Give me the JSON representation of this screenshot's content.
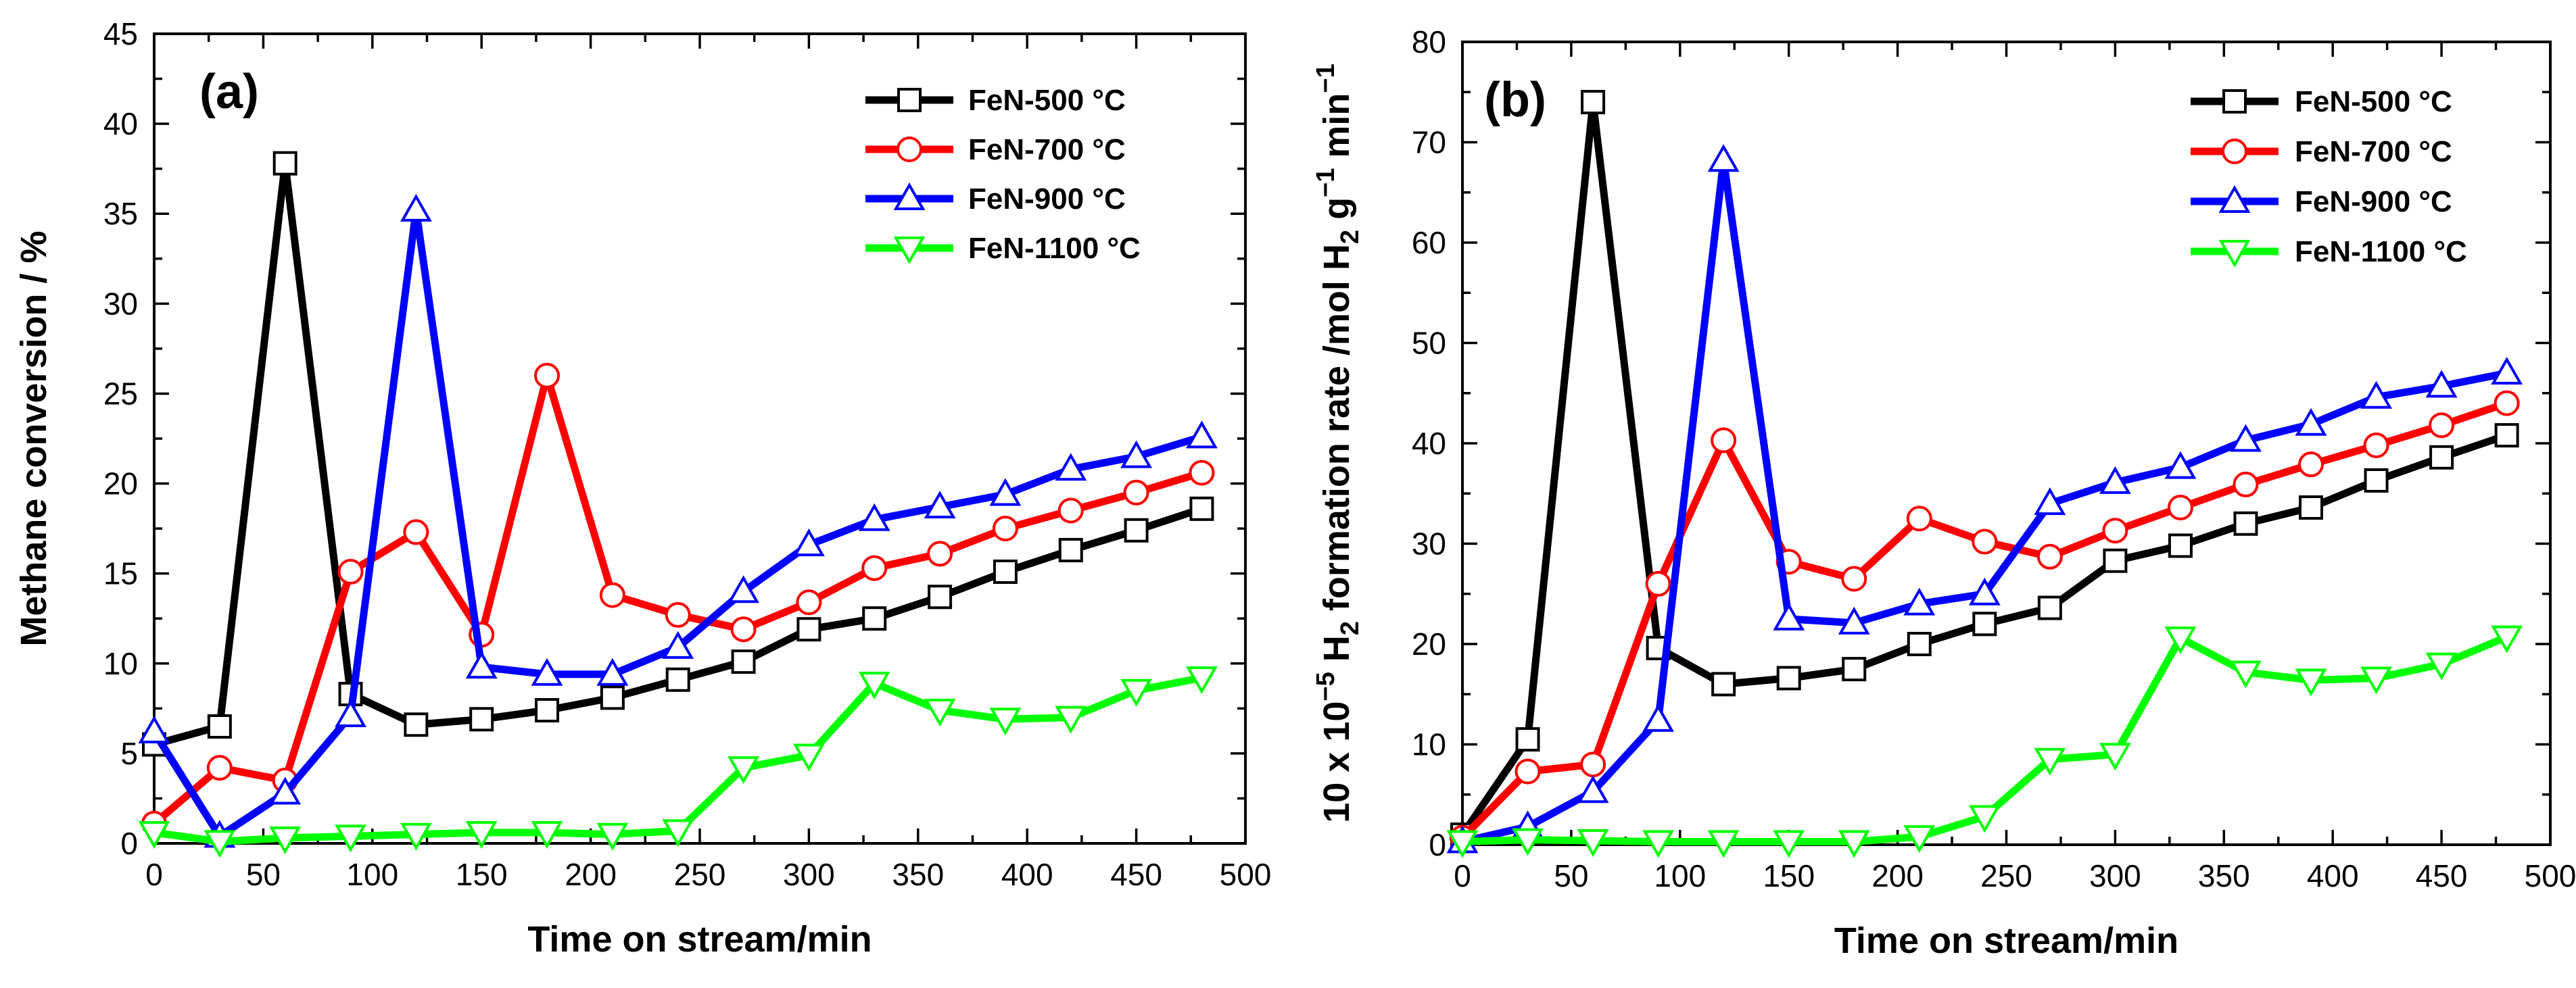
{
  "chart_data": [
    {
      "type": "line",
      "panel_label": "(a)",
      "xlabel": "Time on stream/min",
      "ylabel": "Methane conversion / %",
      "xlim": [
        0,
        500
      ],
      "ylim": [
        0,
        45
      ],
      "xticks": [
        0,
        50,
        100,
        150,
        200,
        250,
        300,
        350,
        400,
        450,
        500
      ],
      "yticks": [
        0,
        5,
        10,
        15,
        20,
        25,
        30,
        35,
        40,
        45
      ],
      "legend_position": "top-right",
      "series": [
        {
          "name": "FeN-500 °C",
          "color": "#000000",
          "marker": "square",
          "x": [
            0,
            30,
            60,
            90,
            120,
            150,
            180,
            210,
            240,
            270,
            300,
            330,
            360,
            390,
            420,
            450,
            480
          ],
          "y": [
            5.5,
            6.5,
            37.8,
            8.3,
            6.6,
            6.9,
            7.4,
            8.1,
            9.1,
            10.1,
            11.9,
            12.5,
            13.7,
            15.1,
            16.3,
            17.4,
            18.6
          ]
        },
        {
          "name": "FeN-700 °C",
          "color": "#ff0000",
          "marker": "circle",
          "x": [
            0,
            30,
            60,
            90,
            120,
            150,
            180,
            210,
            240,
            270,
            300,
            330,
            360,
            390,
            420,
            450,
            480
          ],
          "y": [
            1.1,
            4.2,
            3.5,
            15.1,
            17.3,
            11.6,
            26.0,
            13.8,
            12.7,
            11.9,
            13.4,
            15.3,
            16.1,
            17.5,
            18.5,
            19.5,
            20.6
          ]
        },
        {
          "name": "FeN-900 °C",
          "color": "#0000ff",
          "marker": "triangle-up",
          "x": [
            0,
            30,
            60,
            90,
            120,
            150,
            180,
            210,
            240,
            270,
            300,
            330,
            360,
            390,
            420,
            450,
            480
          ],
          "y": [
            6.2,
            0.4,
            2.8,
            7.1,
            35.2,
            9.8,
            9.4,
            9.4,
            10.9,
            14.0,
            16.6,
            18.0,
            18.7,
            19.4,
            20.8,
            21.5,
            22.6
          ]
        },
        {
          "name": "FeN-1100 °C",
          "color": "#00ff00",
          "marker": "triangle-down",
          "x": [
            0,
            30,
            60,
            90,
            120,
            150,
            180,
            210,
            240,
            270,
            300,
            330,
            360,
            390,
            420,
            450,
            480
          ],
          "y": [
            0.6,
            0.1,
            0.3,
            0.4,
            0.5,
            0.6,
            0.6,
            0.5,
            0.7,
            4.2,
            4.9,
            8.9,
            7.4,
            6.9,
            7.0,
            8.5,
            9.2
          ]
        }
      ]
    },
    {
      "type": "line",
      "panel_label": "(b)",
      "xlabel": "Time on stream/min",
      "ylabel": "10 x 10^-5 H2 formation rate /mol H2 g^-1 min^-1",
      "ylabel_parts": {
        "a": "10 x 10",
        "b": "−5",
        "c": " H",
        "d": "2",
        "e": " formation rate /mol H",
        "f": "2",
        "g": " g",
        "h": "−1",
        "i": " min",
        "j": "−1"
      },
      "xlim": [
        0,
        500
      ],
      "ylim": [
        0,
        80
      ],
      "xticks": [
        0,
        50,
        100,
        150,
        200,
        250,
        300,
        350,
        400,
        450,
        500
      ],
      "yticks": [
        0,
        10,
        20,
        30,
        40,
        50,
        60,
        70,
        80
      ],
      "legend_position": "top-right",
      "series": [
        {
          "name": "FeN-500 °C",
          "color": "#000000",
          "marker": "square",
          "x": [
            0,
            30,
            60,
            90,
            120,
            150,
            180,
            210,
            240,
            270,
            300,
            330,
            360,
            390,
            420,
            450,
            480
          ],
          "y": [
            1.0,
            10.5,
            74.0,
            19.6,
            16.0,
            16.6,
            17.5,
            20.0,
            22.0,
            23.6,
            28.3,
            29.8,
            32.0,
            33.6,
            36.3,
            38.6,
            40.8
          ]
        },
        {
          "name": "FeN-700 °C",
          "color": "#ff0000",
          "marker": "circle",
          "x": [
            0,
            30,
            60,
            90,
            120,
            150,
            180,
            210,
            240,
            270,
            300,
            330,
            360,
            390,
            420,
            450,
            480
          ],
          "y": [
            0.7,
            7.3,
            8.0,
            26.0,
            40.3,
            28.2,
            26.5,
            32.5,
            30.2,
            28.7,
            31.3,
            33.6,
            35.9,
            37.9,
            39.8,
            41.8,
            44.0
          ]
        },
        {
          "name": "FeN-900 °C",
          "color": "#0000ff",
          "marker": "triangle-up",
          "x": [
            0,
            30,
            60,
            90,
            120,
            150,
            180,
            210,
            240,
            270,
            300,
            330,
            360,
            390,
            420,
            450,
            480
          ],
          "y": [
            0.3,
            1.8,
            5.3,
            12.4,
            68.2,
            22.5,
            22.1,
            24.0,
            25.0,
            34.0,
            36.1,
            37.6,
            40.3,
            41.9,
            44.6,
            45.7,
            47.0
          ]
        },
        {
          "name": "FeN-1100 °C",
          "color": "#00ff00",
          "marker": "triangle-down",
          "x": [
            0,
            30,
            60,
            90,
            120,
            150,
            180,
            210,
            240,
            270,
            300,
            330,
            360,
            390,
            420,
            450,
            480
          ],
          "y": [
            0.3,
            0.5,
            0.4,
            0.3,
            0.3,
            0.3,
            0.3,
            0.8,
            2.8,
            8.5,
            9.0,
            20.6,
            17.2,
            16.4,
            16.6,
            18.0,
            20.7
          ]
        }
      ]
    }
  ]
}
